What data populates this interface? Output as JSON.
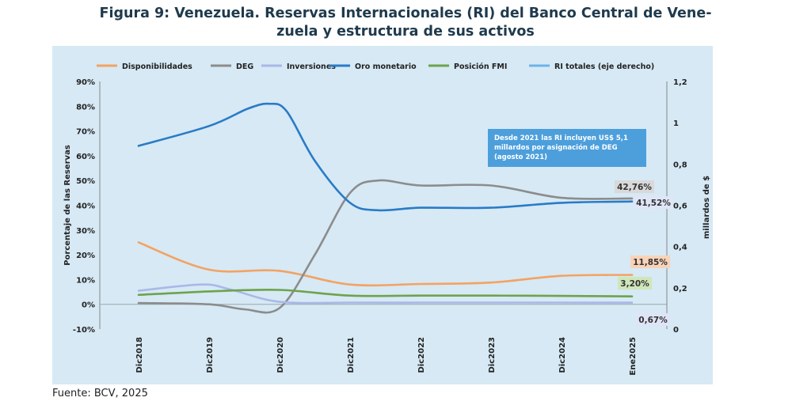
{
  "figure": {
    "title_line1": "Figura 9: Venezuela. Reservas Internacionales (RI) del Banco Central de Vene-",
    "title_line2": "zuela y estructura de sus activos",
    "source": "Fuente: BCV, 2025"
  },
  "chart_data": {
    "type": "line",
    "categories": [
      "Dic2018",
      "Dic2019",
      "Dic2020",
      "Dic2021",
      "Dic2022",
      "Dic2023",
      "Dic2024",
      "Ene2025"
    ],
    "y_left": {
      "label": "Porcentaje de las Reservas",
      "min": -10,
      "max": 90,
      "step": 10,
      "ticks": [
        "-10%",
        "0%",
        "10%",
        "20%",
        "30%",
        "40%",
        "50%",
        "60%",
        "70%",
        "80%",
        "90%"
      ]
    },
    "y_right": {
      "label": "millardos de $",
      "min": 0,
      "max": 1.2,
      "step": 0.2,
      "ticks": [
        "0",
        "0,2",
        "0,4",
        "0,6",
        "0,8",
        "1",
        "1,2"
      ]
    },
    "series": [
      {
        "name": "Disponibilidades",
        "color": "#f4a261",
        "axis": "left",
        "points": [
          [
            0,
            25
          ],
          [
            1,
            14
          ],
          [
            2,
            13.5
          ],
          [
            3,
            8
          ],
          [
            4,
            8.2
          ],
          [
            5,
            8.8
          ],
          [
            6,
            11.5
          ],
          [
            7,
            11.85
          ]
        ]
      },
      {
        "name": "DEG",
        "color": "#8c8c8c",
        "axis": "left",
        "points": [
          [
            0,
            0.5
          ],
          [
            1,
            0
          ],
          [
            1.5,
            -2
          ],
          [
            2,
            -1.5
          ],
          [
            2.5,
            20
          ],
          [
            3,
            45
          ],
          [
            3.4,
            50
          ],
          [
            4,
            48
          ],
          [
            5,
            48
          ],
          [
            6,
            43
          ],
          [
            7,
            42.76
          ]
        ]
      },
      {
        "name": "Inversiones",
        "color": "#aab8e8",
        "axis": "left",
        "points": [
          [
            0,
            5.5
          ],
          [
            0.9,
            8
          ],
          [
            1.3,
            6
          ],
          [
            2,
            1
          ],
          [
            3,
            0.7
          ],
          [
            4,
            0.7
          ],
          [
            5,
            0.7
          ],
          [
            6,
            0.7
          ],
          [
            7,
            0.67
          ]
        ]
      },
      {
        "name": "Oro monetario",
        "color": "#2a7bc6",
        "axis": "left",
        "points": [
          [
            0,
            64
          ],
          [
            1,
            72
          ],
          [
            1.55,
            79
          ],
          [
            1.85,
            81
          ],
          [
            2.1,
            78
          ],
          [
            2.5,
            58
          ],
          [
            3,
            41
          ],
          [
            3.4,
            38
          ],
          [
            4,
            39
          ],
          [
            5,
            39
          ],
          [
            6,
            41
          ],
          [
            7,
            41.52
          ]
        ]
      },
      {
        "name": "Posición FMI",
        "color": "#6da34d",
        "axis": "left",
        "points": [
          [
            0,
            3.8
          ],
          [
            1,
            5.2
          ],
          [
            2,
            5.8
          ],
          [
            3,
            3.5
          ],
          [
            4,
            3.5
          ],
          [
            5,
            3.5
          ],
          [
            6,
            3.4
          ],
          [
            7,
            3.2
          ]
        ]
      },
      {
        "name": "RI totales (eje derecho)",
        "color": "#6db3e8",
        "axis": "right",
        "points": []
      }
    ],
    "end_labels": [
      {
        "series": "DEG",
        "text": "42,76%",
        "bg": "#d9d9d9"
      },
      {
        "series": "Oro monetario",
        "text": "41,52%",
        "bg": "#dfe6f7"
      },
      {
        "series": "Disponibilidades",
        "text": "11,85%",
        "bg": "#f8d3b8"
      },
      {
        "series": "Posición FMI",
        "text": "3,20%",
        "bg": "#cfe6b9"
      },
      {
        "series": "Inversiones",
        "text": "0,67%",
        "bg": "#dfe4f7"
      }
    ],
    "legend_position": "top",
    "grid": false,
    "annotation": {
      "line1": "Desde 2021 las RI incluyen US$ 5,1",
      "line2": "millardos por asignación de DEG",
      "line3": "(agosto 2021)",
      "bg": "#4d9fdc"
    }
  }
}
